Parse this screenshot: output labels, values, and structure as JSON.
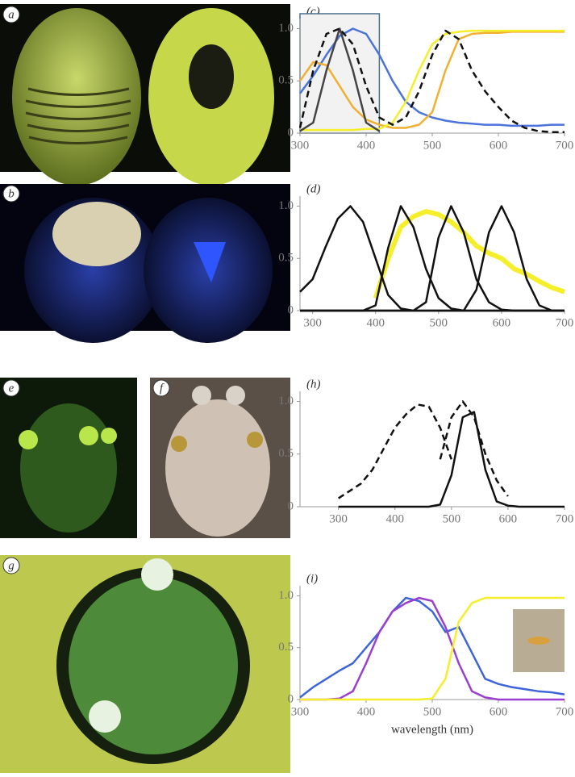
{
  "photos": [
    {
      "label": "a"
    },
    {
      "label": "b"
    },
    {
      "label": "e"
    },
    {
      "label": "f"
    },
    {
      "label": "g"
    }
  ],
  "chart_data": [
    {
      "type": "line",
      "title": "(c)",
      "x": [
        300,
        320,
        340,
        360,
        380,
        400,
        420,
        440,
        460,
        480,
        500,
        520,
        540,
        560,
        580,
        600,
        620,
        640,
        660,
        680,
        700
      ],
      "xlim": [
        300,
        700
      ],
      "xticks": [
        300,
        400,
        500,
        600,
        700
      ],
      "ylim": [
        0,
        1.05
      ],
      "yticks": [
        0,
        0.5,
        {
          "value": 1,
          "label": "1.0"
        }
      ],
      "shaded_range": [
        300,
        420
      ],
      "series": [
        {
          "color": "#4a74d9",
          "values": [
            0.38,
            0.55,
            0.75,
            0.93,
            1.0,
            0.95,
            0.75,
            0.5,
            0.3,
            0.2,
            0.15,
            0.12,
            0.1,
            0.09,
            0.08,
            0.08,
            0.07,
            0.07,
            0.07,
            0.08,
            0.08
          ]
        },
        {
          "color": "#f0b030",
          "values": [
            0.5,
            0.68,
            0.65,
            0.45,
            0.25,
            0.13,
            0.08,
            0.05,
            0.05,
            0.08,
            0.2,
            0.6,
            0.9,
            0.95,
            0.96,
            0.96,
            0.97,
            0.97,
            0.97,
            0.97,
            0.97
          ]
        },
        {
          "color": "#f5ee2a",
          "values": [
            0.03,
            0.03,
            0.03,
            0.03,
            0.03,
            0.04,
            0.04,
            0.1,
            0.3,
            0.6,
            0.85,
            0.95,
            0.97,
            0.98,
            0.98,
            0.98,
            0.98,
            0.98,
            0.98,
            0.98,
            0.98
          ]
        },
        {
          "color": "#444444",
          "values": [
            0.02,
            0.1,
            0.6,
            1.0,
            0.6,
            0.1,
            0.02,
            null,
            null,
            null,
            null,
            null,
            null,
            null,
            null,
            null,
            null,
            null,
            null,
            null,
            null
          ]
        },
        {
          "color": "#111111",
          "dashed": true,
          "values": [
            0.05,
            0.6,
            0.95,
            1.0,
            0.85,
            0.45,
            0.15,
            0.08,
            0.15,
            0.4,
            0.75,
            0.98,
            0.9,
            0.6,
            0.4,
            0.25,
            0.12,
            0.05,
            0.02,
            0.01,
            0.01
          ]
        }
      ]
    },
    {
      "type": "line",
      "title": "(d)",
      "x": [
        280,
        300,
        320,
        340,
        360,
        380,
        400,
        420,
        440,
        460,
        480,
        500,
        520,
        540,
        560,
        580,
        600,
        620,
        640,
        660,
        680,
        700
      ],
      "xlim": [
        280,
        700
      ],
      "xticks": [
        300,
        400,
        500,
        600,
        700
      ],
      "ylim": [
        0,
        1.05
      ],
      "yticks": [
        0,
        0.5,
        {
          "value": 1,
          "label": "1.0"
        }
      ],
      "series": [
        {
          "color": "#f5ee2a",
          "line_width": 6,
          "values": [
            null,
            null,
            null,
            null,
            null,
            null,
            0.12,
            0.5,
            0.8,
            0.9,
            0.95,
            0.92,
            0.85,
            0.75,
            0.62,
            0.55,
            0.5,
            0.4,
            0.35,
            0.28,
            0.22,
            0.18
          ]
        },
        {
          "color": "#111111",
          "values": [
            0.18,
            0.3,
            0.6,
            0.88,
            1.0,
            0.85,
            0.5,
            0.15,
            0.02,
            0,
            0,
            0,
            0,
            0,
            0,
            0,
            0,
            0,
            0,
            0,
            0,
            0
          ]
        },
        {
          "color": "#111111",
          "values": [
            0,
            0,
            0,
            0,
            0,
            0,
            0.05,
            0.6,
            1.0,
            0.8,
            0.4,
            0.12,
            0.02,
            0,
            0,
            0,
            0,
            0,
            0,
            0,
            0,
            0
          ]
        },
        {
          "color": "#111111",
          "values": [
            0,
            0,
            0,
            0,
            0,
            0,
            0,
            0,
            0,
            0,
            0.08,
            0.7,
            1.0,
            0.75,
            0.3,
            0.08,
            0.01,
            0,
            0,
            0,
            0,
            0
          ]
        },
        {
          "color": "#111111",
          "values": [
            0,
            0,
            0,
            0,
            0,
            0,
            0,
            0,
            0,
            0,
            0,
            0,
            0,
            0,
            0.2,
            0.75,
            1.0,
            0.75,
            0.3,
            0.05,
            0,
            0
          ]
        }
      ]
    },
    {
      "type": "line",
      "title": "(h)",
      "x": [
        300,
        320,
        340,
        360,
        380,
        400,
        420,
        440,
        460,
        480,
        500,
        520,
        540,
        560,
        580,
        600,
        620,
        640,
        660,
        680,
        700
      ],
      "xlim": [
        232,
        700
      ],
      "xticks": [
        300,
        400,
        500,
        600,
        700
      ],
      "ylim": [
        0,
        1.05
      ],
      "yticks": [
        0,
        0.5,
        {
          "value": 1,
          "label": "1.0"
        }
      ],
      "series": [
        {
          "color": "#111111",
          "dashed": true,
          "values": [
            0.08,
            0.15,
            0.22,
            0.35,
            0.55,
            0.75,
            0.88,
            0.97,
            0.95,
            0.75,
            0.45,
            null,
            null,
            null,
            null,
            null,
            null,
            null,
            null,
            null,
            null
          ]
        },
        {
          "color": "#111111",
          "dashed": true,
          "values": [
            null,
            null,
            null,
            null,
            null,
            null,
            null,
            null,
            null,
            0.45,
            0.85,
            1.0,
            0.85,
            0.5,
            0.25,
            0.1,
            null,
            null,
            null,
            null,
            null
          ]
        },
        {
          "color": "#111111",
          "values": [
            0,
            0,
            0,
            0,
            0,
            0,
            0,
            0,
            0,
            0.02,
            0.3,
            0.85,
            0.9,
            0.35,
            0.05,
            0.01,
            0,
            0,
            0,
            0,
            0
          ]
        }
      ]
    },
    {
      "type": "line",
      "title": "(i)",
      "xlabel": "wavelength (nm)",
      "x": [
        300,
        320,
        340,
        360,
        380,
        400,
        420,
        440,
        460,
        480,
        500,
        520,
        540,
        560,
        580,
        600,
        620,
        640,
        660,
        680,
        700
      ],
      "xlim": [
        300,
        700
      ],
      "xticks": [
        300,
        400,
        500,
        600,
        700
      ],
      "ylim": [
        0,
        1.05
      ],
      "yticks": [
        0,
        0.5,
        {
          "value": 1,
          "label": "1.0"
        }
      ],
      "series": [
        {
          "color": "#3e66d8",
          "values": [
            0.02,
            0.12,
            0.2,
            0.28,
            0.35,
            0.5,
            0.65,
            0.85,
            0.98,
            0.95,
            0.85,
            0.65,
            0.7,
            0.45,
            0.2,
            0.15,
            0.12,
            0.1,
            0.08,
            0.07,
            0.05
          ]
        },
        {
          "color": "#9b3fd0",
          "values": [
            0,
            0,
            0,
            0.01,
            0.08,
            0.35,
            0.65,
            0.85,
            0.93,
            0.98,
            0.95,
            0.7,
            0.35,
            0.08,
            0.02,
            0,
            0,
            0,
            0,
            0,
            0
          ]
        },
        {
          "color": "#f5ee2a",
          "values": [
            0,
            0,
            0,
            0,
            0,
            0,
            0,
            0,
            0,
            0,
            0.01,
            0.2,
            0.75,
            0.93,
            0.98,
            0.98,
            0.98,
            0.98,
            0.98,
            0.98,
            0.98
          ]
        }
      ]
    }
  ]
}
